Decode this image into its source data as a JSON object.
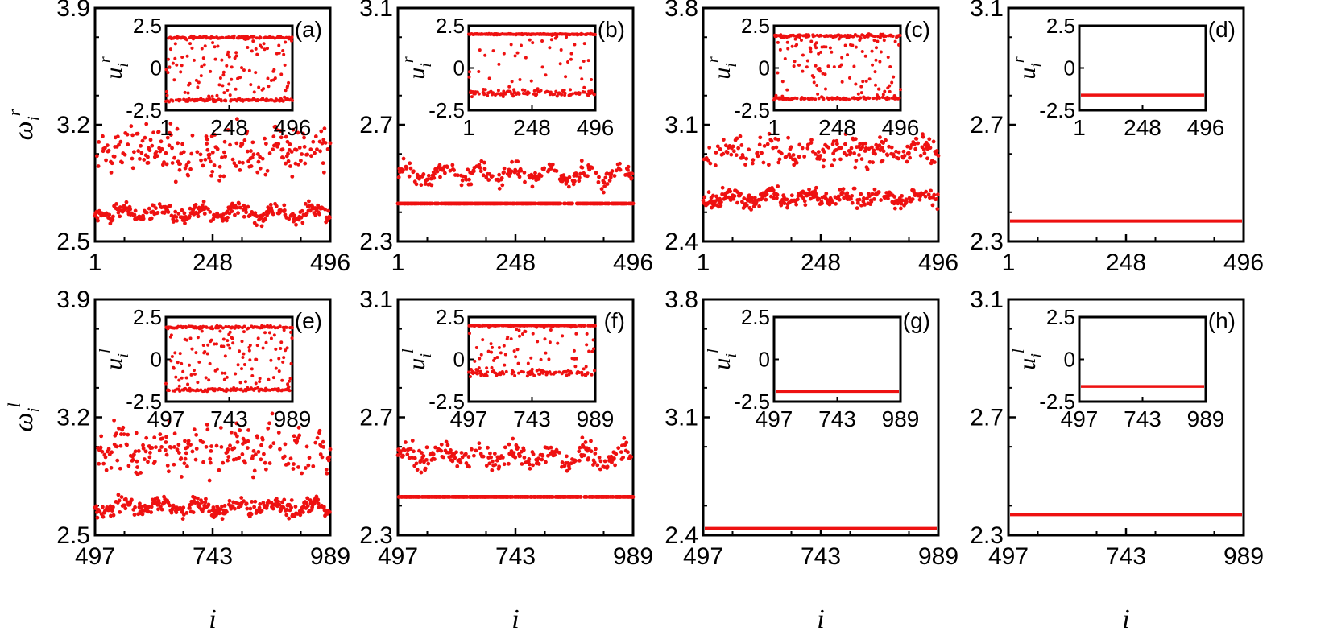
{
  "figure": {
    "rows": 2,
    "cols": 4,
    "point_color": "#ee1111"
  },
  "row_labels": [
    {
      "ylabel": "ω",
      "ylabel_sub": "i",
      "ylabel_sup": "r",
      "inset_ylabel": "u",
      "inset_sub": "i",
      "inset_sup": "r"
    },
    {
      "ylabel": "ω",
      "ylabel_sub": "i",
      "ylabel_sup": "l",
      "inset_ylabel": "u",
      "inset_sub": "i",
      "inset_sup": "l"
    }
  ],
  "xlabel": "i",
  "chart_data": [
    {
      "panel": "(a)",
      "type": "scatter",
      "xlim": [
        1,
        496
      ],
      "xticks": [
        "1",
        "248",
        "496"
      ],
      "ylim": [
        2.5,
        3.9
      ],
      "yticks": [
        "2.5",
        "3.2",
        "3.9"
      ],
      "pattern": "desync",
      "clusters": [
        {
          "y_center": 2.67,
          "y_spread": 0.05
        },
        {
          "y_center": 3.05,
          "y_spread": 0.18
        }
      ],
      "inset": {
        "type": "scatter",
        "xlim": [
          1,
          496
        ],
        "xticks": [
          "1",
          "248",
          "496"
        ],
        "ylim": [
          -2.5,
          2.5
        ],
        "yticks": [
          "-2.5",
          "0",
          "2.5"
        ],
        "pattern": "spread",
        "bands": [
          1.8,
          -1.9
        ]
      }
    },
    {
      "panel": "(b)",
      "type": "scatter",
      "xlim": [
        1,
        496
      ],
      "xticks": [
        "1",
        "248",
        "496"
      ],
      "ylim": [
        2.3,
        3.1
      ],
      "yticks": [
        "2.3",
        "2.7",
        "3.1"
      ],
      "pattern": "partial",
      "flat_value": 2.43,
      "clusters": [
        {
          "y_center": 2.53,
          "y_spread": 0.03
        }
      ],
      "inset": {
        "type": "scatter",
        "xlim": [
          1,
          496
        ],
        "xticks": [
          "1",
          "248",
          "496"
        ],
        "ylim": [
          -2.5,
          2.5
        ],
        "yticks": [
          "-2.5",
          "0",
          "2.5"
        ],
        "pattern": "partial",
        "bands": [
          2.0,
          -1.5
        ]
      }
    },
    {
      "panel": "(c)",
      "type": "scatter",
      "xlim": [
        1,
        496
      ],
      "xticks": [
        "1",
        "248",
        "496"
      ],
      "ylim": [
        2.4,
        3.8
      ],
      "yticks": [
        "2.4",
        "3.1",
        "3.8"
      ],
      "pattern": "desync",
      "clusters": [
        {
          "y_center": 2.66,
          "y_spread": 0.05
        },
        {
          "y_center": 2.94,
          "y_spread": 0.1
        }
      ],
      "inset": {
        "type": "scatter",
        "xlim": [
          1,
          496
        ],
        "xticks": [
          "1",
          "248",
          "496"
        ],
        "ylim": [
          -2.5,
          2.5
        ],
        "yticks": [
          "-2.5",
          "0",
          "2.5"
        ],
        "pattern": "spread",
        "bands": [
          1.9,
          -1.8
        ]
      }
    },
    {
      "panel": "(d)",
      "type": "line",
      "xlim": [
        1,
        496
      ],
      "xticks": [
        "1",
        "248",
        "496"
      ],
      "ylim": [
        2.3,
        3.1
      ],
      "yticks": [
        "2.3",
        "2.7",
        "3.1"
      ],
      "pattern": "flat",
      "flat_value": 2.37,
      "inset": {
        "type": "line",
        "xlim": [
          1,
          496
        ],
        "xticks": [
          "1",
          "248",
          "496"
        ],
        "ylim": [
          -2.5,
          2.5
        ],
        "yticks": [
          "-2.5",
          "0",
          "2.5"
        ],
        "pattern": "flat",
        "flat_value": -1.6
      }
    },
    {
      "panel": "(e)",
      "type": "scatter",
      "xlim": [
        497,
        989
      ],
      "xticks": [
        "497",
        "743",
        "989"
      ],
      "ylim": [
        2.5,
        3.9
      ],
      "yticks": [
        "2.5",
        "3.2",
        "3.9"
      ],
      "pattern": "desync",
      "clusters": [
        {
          "y_center": 2.67,
          "y_spread": 0.05
        },
        {
          "y_center": 3.0,
          "y_spread": 0.16
        }
      ],
      "inset": {
        "type": "scatter",
        "xlim": [
          497,
          989
        ],
        "xticks": [
          "497",
          "743",
          "989"
        ],
        "ylim": [
          -2.5,
          2.5
        ],
        "yticks": [
          "-2.5",
          "0",
          "2.5"
        ],
        "pattern": "spread",
        "bands": [
          1.9,
          -1.8
        ]
      }
    },
    {
      "panel": "(f)",
      "type": "scatter",
      "xlim": [
        497,
        989
      ],
      "xticks": [
        "497",
        "743",
        "989"
      ],
      "ylim": [
        2.3,
        3.1
      ],
      "yticks": [
        "2.3",
        "2.7",
        "3.1"
      ],
      "pattern": "partial",
      "flat_value": 2.43,
      "clusters": [
        {
          "y_center": 2.57,
          "y_spread": 0.04
        }
      ],
      "inset": {
        "type": "scatter",
        "xlim": [
          497,
          989
        ],
        "xticks": [
          "497",
          "743",
          "989"
        ],
        "ylim": [
          -2.5,
          2.5
        ],
        "yticks": [
          "-2.5",
          "0",
          "2.5"
        ],
        "pattern": "partial",
        "bands": [
          2.0,
          -0.8
        ]
      }
    },
    {
      "panel": "(g)",
      "type": "line",
      "xlim": [
        497,
        989
      ],
      "xticks": [
        "497",
        "743",
        "989"
      ],
      "ylim": [
        2.4,
        3.8
      ],
      "yticks": [
        "2.4",
        "3.1",
        "3.8"
      ],
      "pattern": "flat",
      "flat_value": 2.44,
      "inset": {
        "type": "line",
        "xlim": [
          497,
          989
        ],
        "xticks": [
          "497",
          "743",
          "989"
        ],
        "ylim": [
          -2.5,
          2.5
        ],
        "yticks": [
          "-2.5",
          "0",
          "2.5"
        ],
        "pattern": "flat",
        "flat_value": -1.9
      }
    },
    {
      "panel": "(h)",
      "type": "line",
      "xlim": [
        497,
        989
      ],
      "xticks": [
        "497",
        "743",
        "989"
      ],
      "ylim": [
        2.3,
        3.1
      ],
      "yticks": [
        "2.3",
        "2.7",
        "3.1"
      ],
      "pattern": "flat",
      "flat_value": 2.37,
      "inset": {
        "type": "line",
        "xlim": [
          497,
          989
        ],
        "xticks": [
          "497",
          "743",
          "989"
        ],
        "ylim": [
          -2.5,
          2.5
        ],
        "yticks": [
          "-2.5",
          "0",
          "2.5"
        ],
        "pattern": "flat",
        "flat_value": -1.6
      }
    }
  ]
}
